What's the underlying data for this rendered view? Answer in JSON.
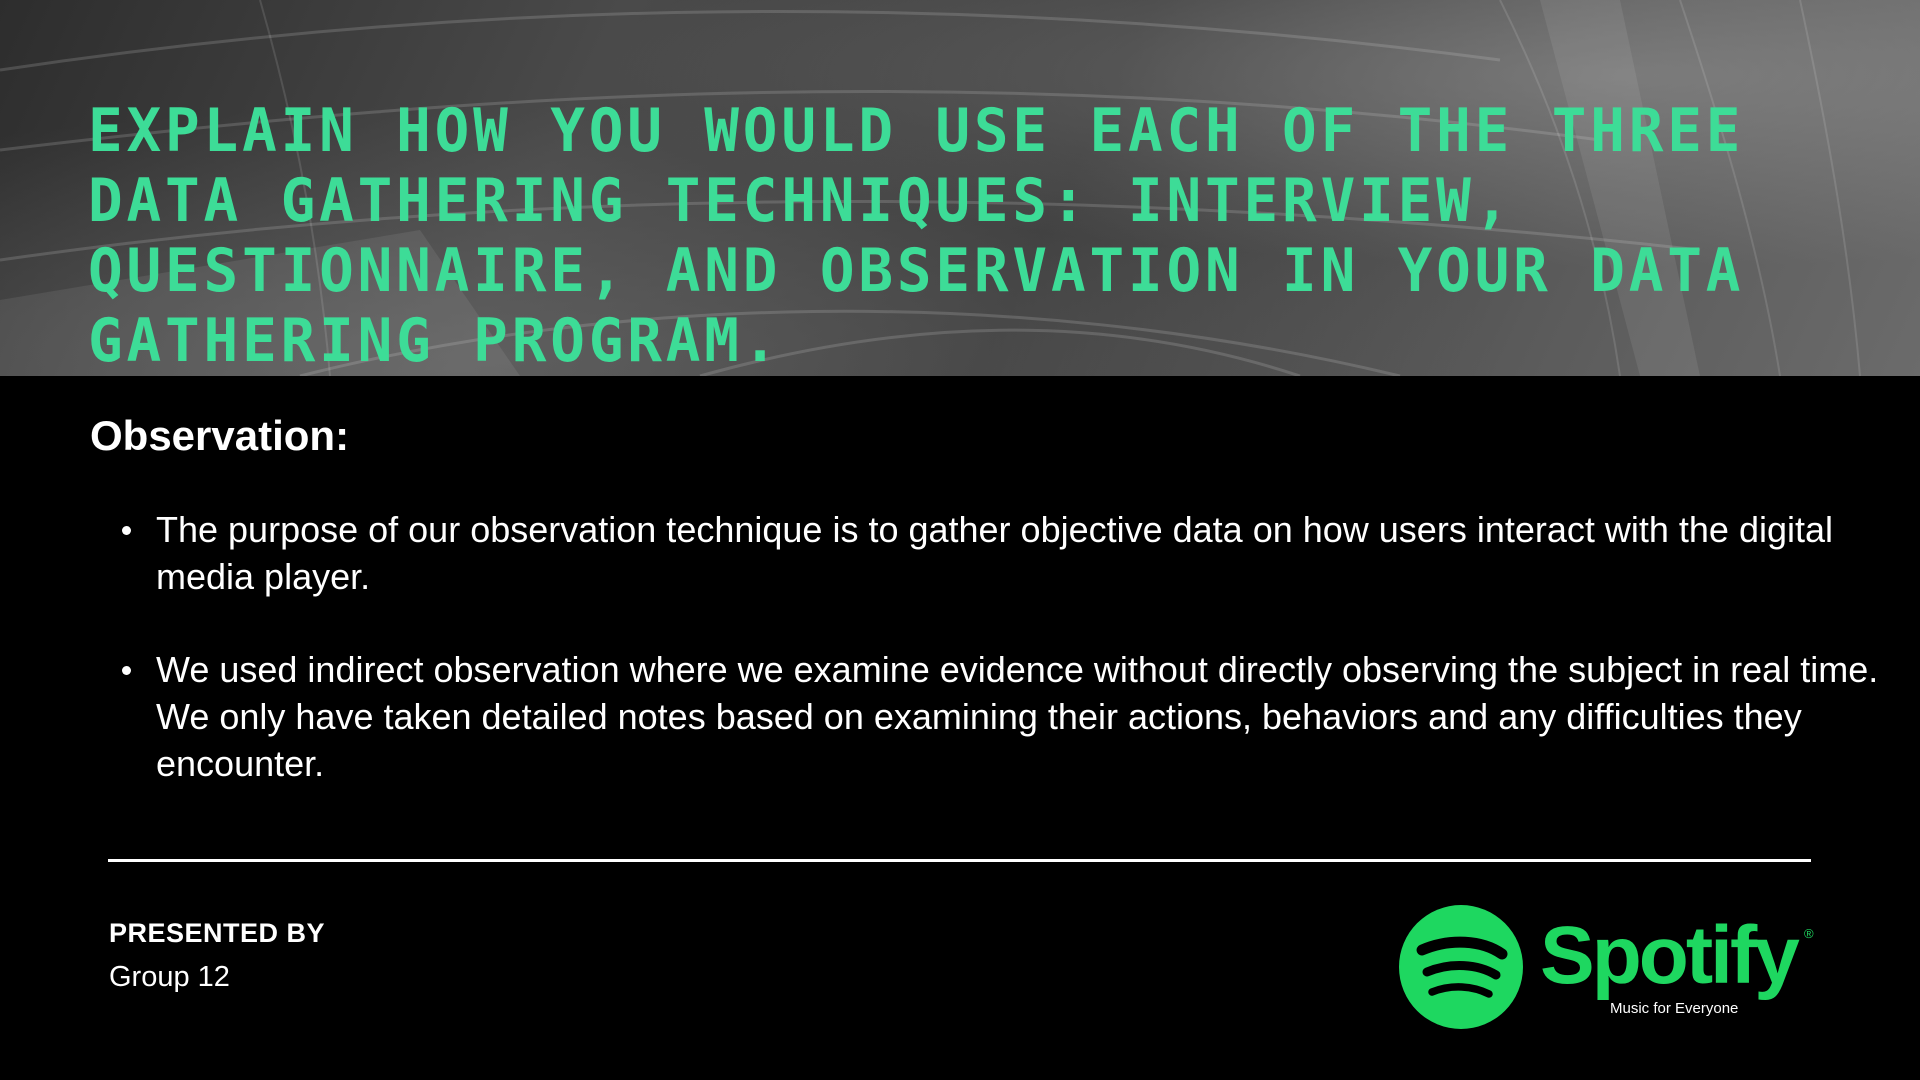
{
  "header": {
    "headline": "Explain how you would use each of the three data gathering techniques: Interview, Questionnaire, and Observation in your data gathering program."
  },
  "section": {
    "title": "Observation:",
    "bullets": [
      "The purpose of our observation technique is to gather objective data on how users interact with the digital media player.",
      "We used indirect observation where we examine evidence without directly observing the subject in real time. We only have taken detailed notes based on examining their actions, behaviors and any difficulties they encounter."
    ]
  },
  "footer": {
    "presented_label": "PRESENTED BY",
    "presenter": "Group 12",
    "logo": {
      "wordmark": "Spotify",
      "registered": "®",
      "tagline": "Music for Everyone",
      "icon": "spotify-logo-icon"
    }
  },
  "colors": {
    "headline": "#3ddc97",
    "brand_green": "#1ed760",
    "background": "#000000",
    "text": "#ffffff"
  }
}
